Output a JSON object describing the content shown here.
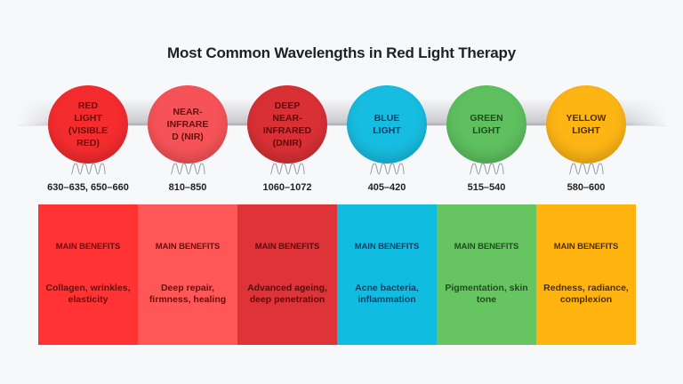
{
  "title": "Most Common Wavelengths in Red Light Therapy",
  "items": [
    {
      "name": "RED LIGHT (VISIBLE RED)",
      "range": "630–635, 650–660",
      "header": "MAIN BENEFITS",
      "benefits": "Collagen, wrinkles, elasticity",
      "bubble_color": "#f42c2e",
      "col_color": "#ff3333",
      "text_color": "#6a0d0d"
    },
    {
      "name": "NEAR-INFRARED (NIR)",
      "range": "810–850",
      "header": "MAIN BENEFITS",
      "benefits": "Deep repair, firmness, healing",
      "bubble_color": "#f65358",
      "col_color": "#ff5757",
      "text_color": "#6a0d0d"
    },
    {
      "name": "DEEP NEAR-INFRARED (DNIR)",
      "range": "1060–1072",
      "header": "MAIN BENEFITS",
      "benefits": "Advanced ageing, deep penetration",
      "bubble_color": "#d93035",
      "col_color": "#de3338",
      "text_color": "#5a0b0b"
    },
    {
      "name": "BLUE LIGHT",
      "range": "405–420",
      "header": "MAIN BENEFITS",
      "benefits": "Acne bacteria, inflammation",
      "bubble_color": "#17bde0",
      "col_color": "#10bde0",
      "text_color": "#0b3f66"
    },
    {
      "name": "GREEN LIGHT",
      "range": "515–540",
      "header": "MAIN BENEFITS",
      "benefits": "Pigmentation, skin tone",
      "bubble_color": "#5ec05f",
      "col_color": "#66c461",
      "text_color": "#1e4d1e"
    },
    {
      "name": "YELLOW LIGHT",
      "range": "580–600",
      "header": "MAIN BENEFITS",
      "benefits": "Redness, radiance, complexion",
      "bubble_color": "#fdb515",
      "col_color": "#ffb30f",
      "text_color": "#4d3000"
    }
  ],
  "bubble_labels": [
    [
      "RED",
      "LIGHT",
      "(VISIBLE",
      "RED)"
    ],
    [
      "NEAR-",
      "INFRARE",
      "D (NIR)"
    ],
    [
      "DEEP NEAR-",
      "INFRARED",
      "(DNIR)"
    ],
    [
      "BLUE",
      "LIGHT"
    ],
    [
      "GREEN",
      "LIGHT"
    ],
    [
      "YELLOW",
      "LIGHT"
    ]
  ],
  "icons": {
    "wave": "sine-wave-icon"
  }
}
